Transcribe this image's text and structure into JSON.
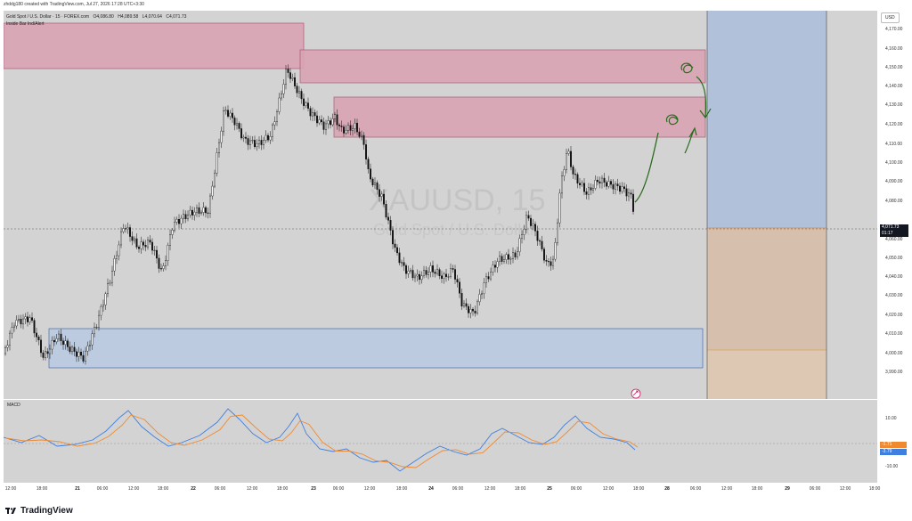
{
  "header": {
    "credit": "zhddg180 created with TradingView.com, Jul 27, 2026 17:28 UTC+3:30"
  },
  "symbol": {
    "name": "Gold Spot / U.S. Dollar · 15 · FOREX.com",
    "open": "O4,086.80",
    "high": "H4,089.58",
    "low": "L4,070.64",
    "close": "C4,071.73"
  },
  "indicator_label": "Inside Bar Ind/Alert",
  "watermark": {
    "symbol": "XAUUSD, 15",
    "description": "Gold Spot / U.S. Dollar"
  },
  "currency_button": "USD",
  "price_axis": [
    "4,170.00",
    "4,160.00",
    "4,150.00",
    "4,140.00",
    "4,130.00",
    "4,120.00",
    "4,110.00",
    "4,100.00",
    "4,090.00",
    "4,080.00",
    "4,060.00",
    "4,050.00",
    "4,040.00",
    "4,030.00",
    "4,020.00",
    "4,010.00",
    "4,000.00",
    "3,990.00"
  ],
  "last_price": {
    "value": "4,071.73",
    "countdown": "01:17"
  },
  "macd": {
    "label": "MACD",
    "axis": [
      "10.00",
      "-10.00"
    ],
    "value_orange": "-1.71",
    "value_blue": "-3.79"
  },
  "time_axis": [
    {
      "label": "12:00",
      "day": false
    },
    {
      "label": "18:00",
      "day": false
    },
    {
      "label": "21",
      "day": true
    },
    {
      "label": "06:00",
      "day": false
    },
    {
      "label": "12:00",
      "day": false
    },
    {
      "label": "18:00",
      "day": false
    },
    {
      "label": "22",
      "day": true
    },
    {
      "label": "06:00",
      "day": false
    },
    {
      "label": "12:00",
      "day": false
    },
    {
      "label": "18:00",
      "day": false
    },
    {
      "label": "23",
      "day": true
    },
    {
      "label": "06:00",
      "day": false
    },
    {
      "label": "12:00",
      "day": false
    },
    {
      "label": "18:00",
      "day": false
    },
    {
      "label": "24",
      "day": true
    },
    {
      "label": "06:00",
      "day": false
    },
    {
      "label": "12:00",
      "day": false
    },
    {
      "label": "18:00",
      "day": false
    },
    {
      "label": "25",
      "day": true
    },
    {
      "label": "06:00",
      "day": false
    },
    {
      "label": "12:00",
      "day": false
    },
    {
      "label": "18:00",
      "day": false
    },
    {
      "label": "28",
      "day": true
    },
    {
      "label": "06:00",
      "day": false
    },
    {
      "label": "12:00",
      "day": false
    },
    {
      "label": "18:00",
      "day": false
    },
    {
      "label": "29",
      "day": true
    },
    {
      "label": "06:00",
      "day": false
    },
    {
      "label": "12:00",
      "day": false
    },
    {
      "label": "18:00",
      "day": false
    }
  ],
  "footer": {
    "brand": "TradingView"
  },
  "colors": {
    "pane_bg": "#d3d3d3",
    "supply_zone": "#d9a4b4",
    "demand_zone": "#bccbe0",
    "target_zone": "#b1c1da",
    "stop_zone": "#d7bfae",
    "candle": "#111111",
    "macd_blue": "#3f7fe0",
    "macd_orange": "#f08a30",
    "drawing": "#2b6b1e"
  },
  "icons": [
    "tradingview-logo-icon",
    "magnet-icon"
  ]
}
